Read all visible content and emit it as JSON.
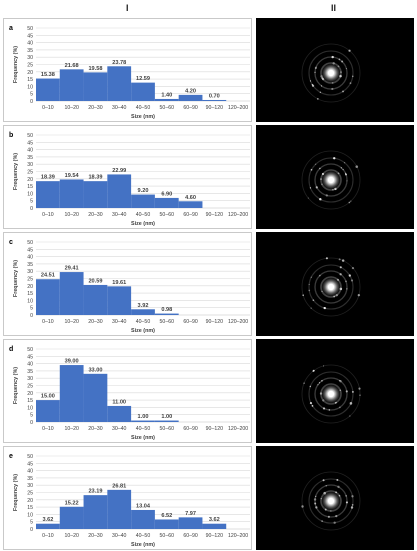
{
  "columns": {
    "left": "I",
    "right": "II"
  },
  "axis": {
    "ylabel": "Frequency (%)",
    "xlabel": "Size (nm)",
    "yticks": [
      "0",
      "5",
      "10",
      "15",
      "20",
      "25",
      "30",
      "35",
      "40",
      "45",
      "50"
    ]
  },
  "colors": {
    "bar": "#4472c4",
    "grid": "#d9d9d9",
    "ed_background": "#000000"
  },
  "chart_data": [
    {
      "panel": "a",
      "type": "bar",
      "categories": [
        "0–10",
        "10–20",
        "20–30",
        "30–40",
        "40–50",
        "50–60",
        "60–90",
        "90–120",
        "120–200"
      ],
      "values": [
        15.38,
        21.68,
        19.58,
        23.78,
        12.59,
        1.4,
        4.2,
        0.7,
        0
      ],
      "labels": [
        "15.38",
        "21.68",
        "19.58",
        "23.78",
        "12.59",
        "1.40",
        "4.20",
        "0.70",
        ""
      ],
      "xlabel": "Size (nm)",
      "ylabel": "Frequency (%)",
      "ylim": [
        0,
        50
      ],
      "grid": true
    },
    {
      "panel": "b",
      "type": "bar",
      "categories": [
        "0–10",
        "10–20",
        "20–30",
        "30–40",
        "40–50",
        "50–60",
        "60–90",
        "90–120",
        "120–200"
      ],
      "values": [
        18.39,
        19.54,
        18.39,
        22.99,
        9.2,
        6.9,
        4.6,
        0,
        0
      ],
      "labels": [
        "18.39",
        "19.54",
        "18.39",
        "22.99",
        "9.20",
        "6.90",
        "4.60",
        "",
        ""
      ],
      "xlabel": "Size (nm)",
      "ylabel": "Frequency (%)",
      "ylim": [
        0,
        50
      ],
      "grid": true
    },
    {
      "panel": "c",
      "type": "bar",
      "categories": [
        "0–10",
        "10–20",
        "20–30",
        "30–40",
        "40–50",
        "50–60",
        "60–90",
        "90–120",
        "120–200"
      ],
      "values": [
        24.51,
        29.41,
        20.59,
        19.61,
        3.92,
        0.98,
        0,
        0,
        0
      ],
      "labels": [
        "24.51",
        "29.41",
        "20.59",
        "19.61",
        "3.92",
        "0.98",
        "",
        "",
        ""
      ],
      "xlabel": "Size (nm)",
      "ylabel": "Frequency (%)",
      "ylim": [
        0,
        50
      ],
      "grid": true
    },
    {
      "panel": "d",
      "type": "bar",
      "categories": [
        "0–10",
        "10–20",
        "20–30",
        "30–40",
        "40–50",
        "50–60",
        "60–90",
        "90–120",
        "120–200"
      ],
      "values": [
        15.0,
        39.0,
        33.0,
        11.0,
        1.0,
        1.0,
        0,
        0,
        0
      ],
      "labels": [
        "15.00",
        "39.00",
        "33.00",
        "11.00",
        "1.00",
        "1.00",
        "",
        "",
        ""
      ],
      "xlabel": "Size (nm)",
      "ylabel": "Frequency (%)",
      "ylim": [
        0,
        50
      ],
      "grid": true
    },
    {
      "panel": "e",
      "type": "bar",
      "categories": [
        "0–10",
        "10–20",
        "20–30",
        "30–40",
        "40–50",
        "50–60",
        "60–90",
        "90–120",
        "120–200"
      ],
      "values": [
        3.62,
        15.22,
        23.19,
        26.81,
        13.04,
        6.52,
        7.97,
        3.62,
        0
      ],
      "labels": [
        "3.62",
        "15.22",
        "23.19",
        "26.81",
        "13.04",
        "6.52",
        "7.97",
        "3.62",
        ""
      ],
      "xlabel": "Size (nm)",
      "ylabel": "Frequency (%)",
      "ylim": [
        0,
        50
      ],
      "grid": true
    }
  ]
}
